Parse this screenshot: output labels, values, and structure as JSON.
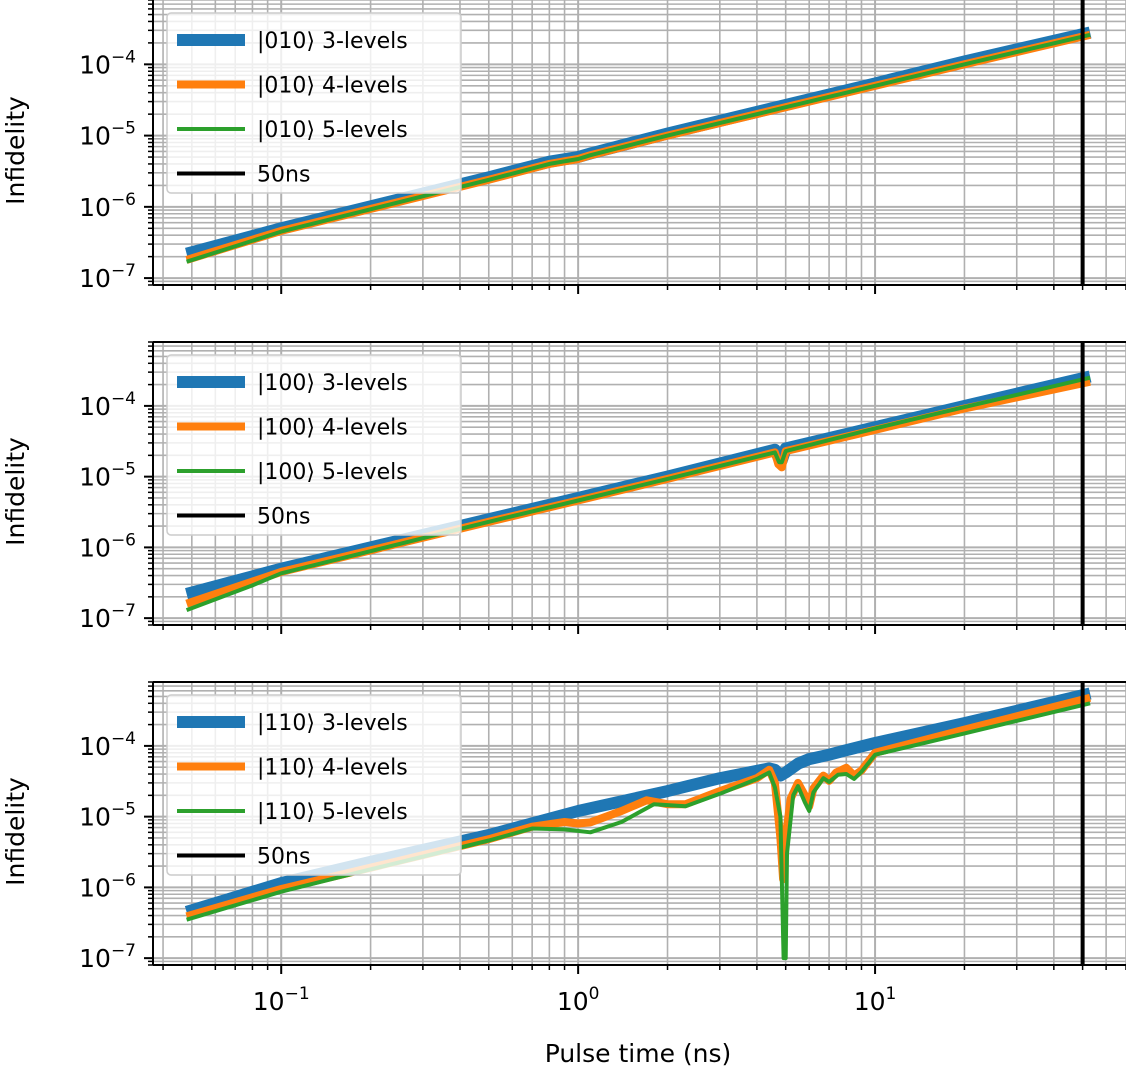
{
  "figure": {
    "xlabel": "Pulse time (ns)",
    "ylabel": "Infidelity",
    "x_scale": "log",
    "y_scale": "log",
    "grid": "major and minor",
    "legend_position": "upper left",
    "sharex": true
  },
  "chart_data": [
    {
      "type": "line",
      "state": "|010⟩",
      "xlabel": "",
      "ylabel": "Infidelity",
      "xlim": [
        0.037,
        70
      ],
      "ylim": [
        8e-08,
        0.0008
      ],
      "y_ticks": [
        {
          "exp": "−7",
          "value": 1e-07
        },
        {
          "exp": "−6",
          "value": 1e-06
        },
        {
          "exp": "−5",
          "value": 1e-05
        },
        {
          "exp": "−4",
          "value": 0.0001
        }
      ],
      "series": [
        {
          "name": "|010⟩ 3-levels",
          "color": "#1f77b4",
          "width": 12,
          "points": [
            [
              0.048,
              2.2e-07
            ],
            [
              0.1,
              5e-07
            ],
            [
              0.5,
              2.6e-06
            ],
            [
              0.8,
              4.3e-06
            ],
            [
              1.0,
              5e-06
            ],
            [
              1.1,
              5.6e-06
            ],
            [
              2.0,
              1.07e-05
            ],
            [
              5.0,
              2.7e-05
            ],
            [
              10.0,
              5.4e-05
            ],
            [
              20.0,
              0.00011
            ],
            [
              53.0,
              0.00028
            ]
          ]
        },
        {
          "name": "|010⟩ 4-levels",
          "color": "#ff7f0e",
          "width": 8,
          "points": [
            [
              0.048,
              1.8e-07
            ],
            [
              0.1,
              4.6e-07
            ],
            [
              0.5,
              2.4e-06
            ],
            [
              0.8,
              4e-06
            ],
            [
              1.0,
              4.7e-06
            ],
            [
              1.1,
              5.3e-06
            ],
            [
              2.0,
              1e-05
            ],
            [
              5.0,
              2.5e-05
            ],
            [
              10.0,
              5e-05
            ],
            [
              20.0,
              0.0001
            ],
            [
              53.0,
              0.00026
            ]
          ]
        },
        {
          "name": "|010⟩ 5-levels",
          "color": "#2ca02c",
          "width": 4,
          "points": [
            [
              0.048,
              1.7e-07
            ],
            [
              0.1,
              4.5e-07
            ],
            [
              0.5,
              2.4e-06
            ],
            [
              0.8,
              4e-06
            ],
            [
              1.0,
              4.7e-06
            ],
            [
              1.1,
              5.3e-06
            ],
            [
              2.0,
              1e-05
            ],
            [
              5.0,
              2.5e-05
            ],
            [
              10.0,
              5e-05
            ],
            [
              20.0,
              0.0001
            ],
            [
              53.0,
              0.00026
            ]
          ]
        },
        {
          "name": "50ns",
          "color": "#000000",
          "width": 4,
          "vline": 50
        }
      ]
    },
    {
      "type": "line",
      "state": "|100⟩",
      "xlabel": "",
      "ylabel": "Infidelity",
      "xlim": [
        0.037,
        70
      ],
      "ylim": [
        8e-08,
        0.0008
      ],
      "y_ticks": [
        {
          "exp": "−7",
          "value": 1e-07
        },
        {
          "exp": "−6",
          "value": 1e-06
        },
        {
          "exp": "−5",
          "value": 1e-05
        },
        {
          "exp": "−4",
          "value": 0.0001
        }
      ],
      "series": [
        {
          "name": "|100⟩ 3-levels",
          "color": "#1f77b4",
          "width": 12,
          "points": [
            [
              0.048,
              2.2e-07
            ],
            [
              0.1,
              5e-07
            ],
            [
              0.5,
              2.5e-06
            ],
            [
              1.0,
              5e-06
            ],
            [
              2.0,
              1e-05
            ],
            [
              4.6,
              2.4e-05
            ],
            [
              4.75,
              1.8e-05
            ],
            [
              4.85,
              1.7e-05
            ],
            [
              5.0,
              2.5e-05
            ],
            [
              10.0,
              5e-05
            ],
            [
              20.0,
              0.0001
            ],
            [
              53.0,
              0.00026
            ]
          ]
        },
        {
          "name": "|100⟩ 4-levels",
          "color": "#ff7f0e",
          "width": 8,
          "points": [
            [
              0.048,
              1.6e-07
            ],
            [
              0.1,
              4.5e-07
            ],
            [
              0.5,
              2.3e-06
            ],
            [
              1.0,
              4.6e-06
            ],
            [
              2.0,
              9.3e-06
            ],
            [
              4.6,
              2.2e-05
            ],
            [
              4.72,
              1.5e-05
            ],
            [
              4.85,
              1.35e-05
            ],
            [
              5.0,
              2.3e-05
            ],
            [
              10.0,
              4.6e-05
            ],
            [
              20.0,
              9.2e-05
            ],
            [
              53.0,
              0.00022
            ]
          ]
        },
        {
          "name": "|100⟩ 5-levels",
          "color": "#2ca02c",
          "width": 4,
          "points": [
            [
              0.048,
              1.3e-07
            ],
            [
              0.08,
              2.9e-07
            ],
            [
              0.1,
              4.3e-07
            ],
            [
              0.5,
              2.3e-06
            ],
            [
              1.0,
              4.6e-06
            ],
            [
              2.0,
              9.3e-06
            ],
            [
              4.6,
              2.2e-05
            ],
            [
              4.75,
              1.6e-05
            ],
            [
              4.85,
              1.6e-05
            ],
            [
              5.0,
              2.3e-05
            ],
            [
              10.0,
              4.8e-05
            ],
            [
              20.0,
              9.6e-05
            ],
            [
              53.0,
              0.00025
            ]
          ]
        },
        {
          "name": "50ns",
          "color": "#000000",
          "width": 4,
          "vline": 50
        }
      ]
    },
    {
      "type": "line",
      "state": "|110⟩",
      "xlabel": "Pulse time (ns)",
      "ylabel": "Infidelity",
      "xlim": [
        0.037,
        70
      ],
      "ylim": [
        8e-08,
        0.0008
      ],
      "y_ticks": [
        {
          "exp": "−7",
          "value": 1e-07
        },
        {
          "exp": "−6",
          "value": 1e-06
        },
        {
          "exp": "−5",
          "value": 1e-05
        },
        {
          "exp": "−4",
          "value": 0.0001
        }
      ],
      "x_ticks": [
        {
          "exp": "−1",
          "value": 0.1
        },
        {
          "exp": "0",
          "value": 1
        },
        {
          "exp": "1",
          "value": 10
        }
      ],
      "series": [
        {
          "name": "|110⟩ 3-levels",
          "color": "#1f77b4",
          "width": 12,
          "points": [
            [
              0.048,
              4.5e-07
            ],
            [
              0.1,
              1.15e-06
            ],
            [
              0.2,
              2.3e-06
            ],
            [
              0.5,
              5.5e-06
            ],
            [
              1.0,
              1.2e-05
            ],
            [
              2.0,
              2.3e-05
            ],
            [
              3.0,
              3.5e-05
            ],
            [
              4.4,
              4.8e-05
            ],
            [
              4.6,
              4.6e-05
            ],
            [
              4.8,
              3.8e-05
            ],
            [
              5.0,
              4.2e-05
            ],
            [
              5.5,
              5.6e-05
            ],
            [
              6.0,
              6.5e-05
            ],
            [
              7.0,
              7.5e-05
            ],
            [
              8.0,
              8.7e-05
            ],
            [
              10.0,
              0.00011
            ],
            [
              20.0,
              0.00021
            ],
            [
              53.0,
              0.00055
            ]
          ]
        },
        {
          "name": "|110⟩ 4-levels",
          "color": "#ff7f0e",
          "width": 8,
          "points": [
            [
              0.048,
              3.9e-07
            ],
            [
              0.1,
              9.5e-07
            ],
            [
              0.2,
              1.9e-06
            ],
            [
              0.5,
              4.8e-06
            ],
            [
              0.7,
              7.2e-06
            ],
            [
              0.9,
              8.4e-06
            ],
            [
              1.0,
              8e-06
            ],
            [
              1.1,
              8.3e-06
            ],
            [
              1.4,
              1.2e-05
            ],
            [
              1.7,
              1.7e-05
            ],
            [
              2.0,
              1.5e-05
            ],
            [
              2.3,
              1.5e-05
            ],
            [
              3.0,
              2.3e-05
            ],
            [
              4.0,
              3.5e-05
            ],
            [
              4.4,
              4.6e-05
            ],
            [
              4.6,
              3e-05
            ],
            [
              4.8,
              5e-06
            ],
            [
              4.9,
              1.3e-06
            ],
            [
              5.0,
              5e-06
            ],
            [
              5.2,
              1.8e-05
            ],
            [
              5.5,
              3e-05
            ],
            [
              5.8,
              2e-05
            ],
            [
              6.0,
              1.4e-05
            ],
            [
              6.2,
              2.5e-05
            ],
            [
              6.7,
              3.8e-05
            ],
            [
              7.0,
              3.2e-05
            ],
            [
              7.4,
              4.2e-05
            ],
            [
              8.0,
              4.9e-05
            ],
            [
              8.5,
              3.8e-05
            ],
            [
              9.0,
              4.5e-05
            ],
            [
              10.0,
              8e-05
            ],
            [
              20.0,
              0.00017
            ],
            [
              53.0,
              0.00048
            ]
          ]
        },
        {
          "name": "|110⟩ 5-levels",
          "color": "#2ca02c",
          "width": 4,
          "points": [
            [
              0.048,
              3.5e-07
            ],
            [
              0.1,
              8.7e-07
            ],
            [
              0.2,
              1.8e-06
            ],
            [
              0.5,
              4.6e-06
            ],
            [
              0.7,
              6.8e-06
            ],
            [
              0.9,
              6.6e-06
            ],
            [
              1.1,
              6e-06
            ],
            [
              1.4,
              8.4e-06
            ],
            [
              1.8,
              1.5e-05
            ],
            [
              2.3,
              1.4e-05
            ],
            [
              3.0,
              2.1e-05
            ],
            [
              4.0,
              3.4e-05
            ],
            [
              4.4,
              4.2e-05
            ],
            [
              4.6,
              2.6e-05
            ],
            [
              4.8,
              1e-05
            ],
            [
              4.92,
              1e-07
            ],
            [
              5.0,
              1e-07
            ],
            [
              5.05,
              3e-06
            ],
            [
              5.3,
              2e-05
            ],
            [
              5.5,
              2.7e-05
            ],
            [
              5.8,
              1.6e-05
            ],
            [
              6.0,
              1.2e-05
            ],
            [
              6.2,
              2.2e-05
            ],
            [
              6.7,
              3.5e-05
            ],
            [
              7.0,
              3.1e-05
            ],
            [
              7.5,
              3.9e-05
            ],
            [
              8.0,
              4e-05
            ],
            [
              8.5,
              3.4e-05
            ],
            [
              9.0,
              4.3e-05
            ],
            [
              10.0,
              7.5e-05
            ],
            [
              20.0,
              0.00015
            ],
            [
              53.0,
              0.0004
            ]
          ]
        },
        {
          "name": "50ns",
          "color": "#000000",
          "width": 4,
          "vline": 50
        }
      ]
    }
  ]
}
